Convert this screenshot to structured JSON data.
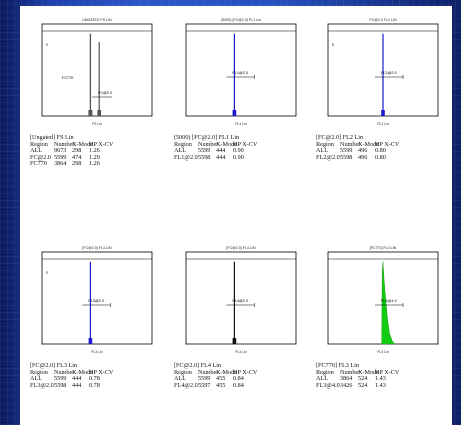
{
  "chart_data": [
    {
      "type": "histogram",
      "title": "UNGATED FS LIN",
      "caption": "[Ungated] FS Lin",
      "xlabel": "FS Lin",
      "ylabel": "E",
      "gate_labels": [
        {
          "text": "FC770"
        },
        {
          "text": "FC@2.0"
        }
      ],
      "series": [
        {
          "color": "#555555",
          "peaks": [
            {
              "x": 0.44,
              "height": 0.98,
              "width": 0.012
            },
            {
              "x": 0.52,
              "height": 0.88,
              "width": 0.01
            }
          ]
        }
      ],
      "stats": {
        "columns": [
          "Region",
          "Number",
          "X-Mode",
          "HP X-CV"
        ],
        "rows": [
          [
            "ALL",
            "9673",
            "298",
            "1.26"
          ],
          [
            "FC@2.0",
            "5599",
            "474",
            "1.29"
          ],
          [
            "FC770",
            "3864",
            "298",
            "1.26"
          ]
        ]
      }
    },
    {
      "type": "histogram",
      "title": "(5000) [FC@2.0] FL1 Lin",
      "caption": "(5000) [FC@2.0] FL1 Lin",
      "xlabel": "FL1 Lin",
      "ylabel": "",
      "gate_labels": [
        {
          "text": "FL1@2.0"
        }
      ],
      "series": [
        {
          "color": "#1a1acc",
          "peaks": [
            {
              "x": 0.44,
              "height": 0.98,
              "width": 0.01
            }
          ]
        }
      ],
      "stats": {
        "columns": [
          "Region",
          "Number",
          "X-Mode",
          "HP X-CV"
        ],
        "rows": [
          [
            "ALL",
            "5599",
            "444",
            "0.90"
          ],
          [
            "FL1@2.0",
            "5598",
            "444",
            "0.90"
          ]
        ]
      }
    },
    {
      "type": "histogram",
      "title": "FC@2.0 FL2 LIN",
      "caption": "[FC@2.0] FL2 Lin",
      "xlabel": "FL2 Lin",
      "ylabel": "E",
      "gate_labels": [
        {
          "text": "FL2@2.0"
        }
      ],
      "series": [
        {
          "color": "#1a1acc",
          "peaks": [
            {
              "x": 0.5,
              "height": 0.98,
              "width": 0.01
            }
          ]
        }
      ],
      "stats": {
        "columns": [
          "Region",
          "Number",
          "X-Mode",
          "HP X-CV"
        ],
        "rows": [
          [
            "ALL",
            "5599",
            "496",
            "0.80"
          ],
          [
            "FL2@2.0",
            "5598",
            "496",
            "0.80"
          ]
        ]
      }
    },
    {
      "type": "histogram",
      "title": "[FC@2.0] FL3 LIN",
      "caption": "[FC@2.0] FL3 Lin",
      "xlabel": "FL3 Lin",
      "ylabel": "E",
      "gate_labels": [
        {
          "text": "FL3@2.0"
        }
      ],
      "series": [
        {
          "color": "#1a1acc",
          "peaks": [
            {
              "x": 0.44,
              "height": 0.98,
              "width": 0.01
            }
          ]
        }
      ],
      "stats": {
        "columns": [
          "Region",
          "Number",
          "X-Mode",
          "HP X-CV"
        ],
        "rows": [
          [
            "ALL",
            "5599",
            "444",
            "0.78"
          ],
          [
            "FL3@2.0",
            "5598",
            "444",
            "0.78"
          ]
        ]
      }
    },
    {
      "type": "histogram",
      "title": "[FC@2.0] FL4 LIN",
      "caption": "[FC@2.0] FL4 Lin",
      "xlabel": "FL4 Lin",
      "ylabel": "",
      "gate_labels": [
        {
          "text": "FL4@2.0"
        }
      ],
      "series": [
        {
          "color": "#111111",
          "peaks": [
            {
              "x": 0.44,
              "height": 0.98,
              "width": 0.01
            }
          ]
        }
      ],
      "stats": {
        "columns": [
          "Region",
          "Number",
          "X-Mode",
          "HP X-CV"
        ],
        "rows": [
          [
            "ALL",
            "5599",
            "455",
            "0.84"
          ],
          [
            "FL4@2.0",
            "5597",
            "455",
            "0.84"
          ]
        ]
      }
    },
    {
      "type": "histogram",
      "title": "[FC770] FL3 LIN",
      "caption": "[FC770] FL3 Lin",
      "xlabel": "FL3 Lin",
      "ylabel": "",
      "gate_labels": [
        {
          "text": "FL3@4.0"
        }
      ],
      "series": [
        {
          "color": "#11cc11",
          "peaks": [
            {
              "x": 0.5,
              "height": 0.98,
              "width": 0.012
            }
          ],
          "fill": true,
          "tail": true
        }
      ],
      "stats": {
        "columns": [
          "Region",
          "Number",
          "X-Mode",
          "HP X-CV"
        ],
        "rows": [
          [
            "ALL",
            "3864",
            "524",
            "1.43"
          ],
          [
            "FL3@4.0",
            "3426",
            "524",
            "1.43"
          ]
        ]
      }
    }
  ]
}
